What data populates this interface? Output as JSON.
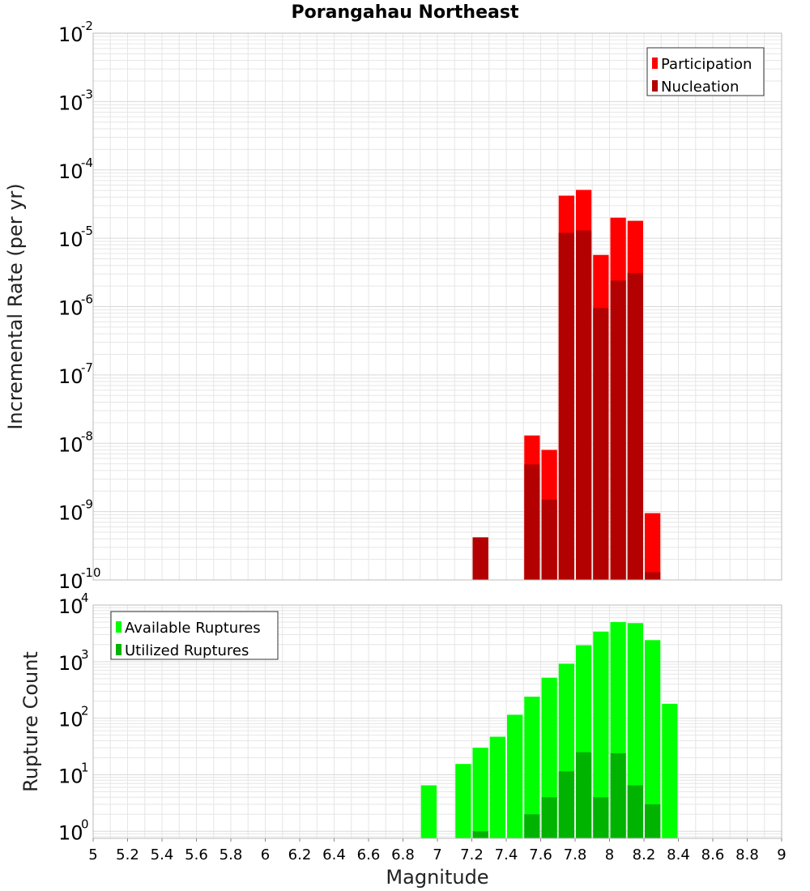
{
  "title": "Porangahau Northeast",
  "colors": {
    "participation": "#ff0000",
    "nucleation": "#b30000",
    "available": "#00ff00",
    "utilized": "#00b300",
    "grid": "#e6e6e6",
    "frame": "#bbbbbb"
  },
  "chart_data": [
    {
      "type": "bar",
      "xlabel": "",
      "ylabel": "Incremental Rate (per yr)",
      "yscale": "log",
      "ylim": [
        1e-10,
        0.01
      ],
      "xlim": [
        5,
        9
      ],
      "bin_width": 0.1,
      "yticks": [
        {
          "base": "10",
          "exp": "-2",
          "value": 0.01
        },
        {
          "base": "10",
          "exp": "-3",
          "value": 0.001
        },
        {
          "base": "10",
          "exp": "-4",
          "value": 0.0001
        },
        {
          "base": "10",
          "exp": "-5",
          "value": 1e-05
        },
        {
          "base": "10",
          "exp": "-6",
          "value": 1e-06
        },
        {
          "base": "10",
          "exp": "-7",
          "value": 1e-07
        },
        {
          "base": "10",
          "exp": "-8",
          "value": 1e-08
        },
        {
          "base": "10",
          "exp": "-9",
          "value": 1e-09
        },
        {
          "base": "10",
          "exp": "-10",
          "value": 1e-10
        }
      ],
      "legend": {
        "position": "top-right",
        "entries": [
          "Participation",
          "Nucleation"
        ]
      },
      "series": [
        {
          "name": "Participation",
          "x": [
            7.25,
            7.55,
            7.65,
            7.75,
            7.85,
            7.95,
            8.05,
            8.15,
            8.25
          ],
          "values": [
            4.2e-10,
            1.3e-08,
            8e-09,
            4.2e-05,
            5.1e-05,
            5.7e-06,
            2e-05,
            1.8e-05,
            9.5e-10
          ]
        },
        {
          "name": "Nucleation",
          "x": [
            7.25,
            7.55,
            7.65,
            7.75,
            7.85,
            7.95,
            8.05,
            8.15,
            8.25
          ],
          "values": [
            4.2e-10,
            4.9e-09,
            1.5e-09,
            1.2e-05,
            1.3e-05,
            9.5e-07,
            2.4e-06,
            3.1e-06,
            1.3e-10
          ]
        }
      ]
    },
    {
      "type": "bar",
      "xlabel": "Magnitude",
      "ylabel": "Rupture Count",
      "yscale": "log",
      "ylim": [
        0.75,
        10000
      ],
      "xlim": [
        5,
        9
      ],
      "bin_width": 0.1,
      "yticks": [
        {
          "base": "10",
          "exp": "4",
          "value": 10000
        },
        {
          "base": "10",
          "exp": "3",
          "value": 1000
        },
        {
          "base": "10",
          "exp": "2",
          "value": 100
        },
        {
          "base": "10",
          "exp": "1",
          "value": 10
        },
        {
          "base": "10",
          "exp": "0",
          "value": 1
        }
      ],
      "xticks": [
        "5",
        "5.2",
        "5.4",
        "5.6",
        "5.8",
        "6",
        "6.2",
        "6.4",
        "6.6",
        "6.8",
        "7",
        "7.2",
        "7.4",
        "7.6",
        "7.8",
        "8",
        "8.2",
        "8.4",
        "8.6",
        "8.8",
        "9"
      ],
      "legend": {
        "position": "top-left",
        "entries": [
          "Available Ruptures",
          "Utilized Ruptures"
        ]
      },
      "series": [
        {
          "name": "Available Ruptures",
          "x": [
            6.95,
            7.15,
            7.25,
            7.35,
            7.45,
            7.55,
            7.65,
            7.75,
            7.85,
            7.95,
            8.05,
            8.15,
            8.25,
            8.35
          ],
          "values": [
            6.5,
            15.5,
            30,
            47,
            115,
            240,
            520,
            920,
            1950,
            3400,
            5000,
            4800,
            2400,
            180
          ]
        },
        {
          "name": "Utilized Ruptures",
          "x": [
            7.25,
            7.55,
            7.65,
            7.75,
            7.85,
            7.95,
            8.05,
            8.15,
            8.25
          ],
          "values": [
            1,
            2,
            4,
            11.5,
            25,
            4,
            24,
            6.5,
            3
          ]
        }
      ]
    }
  ]
}
